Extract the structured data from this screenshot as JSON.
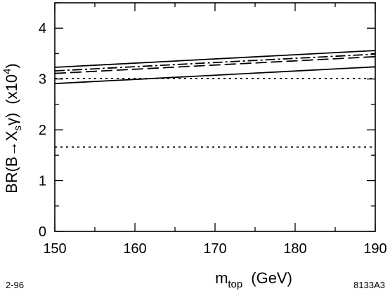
{
  "chart_data": {
    "type": "line",
    "title": "",
    "xlabel": {
      "main": "m",
      "sub": "top",
      "unit": "(GeV)"
    },
    "ylabel": {
      "prefix": "BR(B",
      "arrow": "→",
      "mid": "X",
      "sub": "s",
      "suffix": "γ)",
      "scale_prefix": "(x10",
      "scale_exp": "4",
      "scale_suffix": ")"
    },
    "xlim": [
      150,
      190
    ],
    "ylim": [
      0,
      4.5
    ],
    "x_ticks": [
      150,
      160,
      170,
      180,
      190
    ],
    "y_ticks": [
      0,
      1,
      2,
      3,
      4
    ],
    "x_tick_labels": [
      "150",
      "160",
      "170",
      "180",
      "190"
    ],
    "y_tick_labels": [
      "0",
      "1",
      "2",
      "3",
      "4"
    ],
    "grid": false,
    "series": [
      {
        "style": "solid",
        "x": [
          150,
          190
        ],
        "y": [
          3.23,
          3.56
        ]
      },
      {
        "style": "dash-dot",
        "x": [
          150,
          190
        ],
        "y": [
          3.16,
          3.49
        ]
      },
      {
        "style": "long-dash",
        "x": [
          150,
          190
        ],
        "y": [
          3.11,
          3.44
        ]
      },
      {
        "style": "dotted",
        "x": [
          150,
          190
        ],
        "y": [
          3.01,
          3.01
        ]
      },
      {
        "style": "solid",
        "x": [
          150,
          190
        ],
        "y": [
          2.91,
          3.24
        ]
      },
      {
        "style": "dotted",
        "x": [
          150,
          190
        ],
        "y": [
          1.66,
          1.66
        ]
      }
    ],
    "notes": {
      "left": "2-96",
      "right": "8133A3"
    }
  }
}
